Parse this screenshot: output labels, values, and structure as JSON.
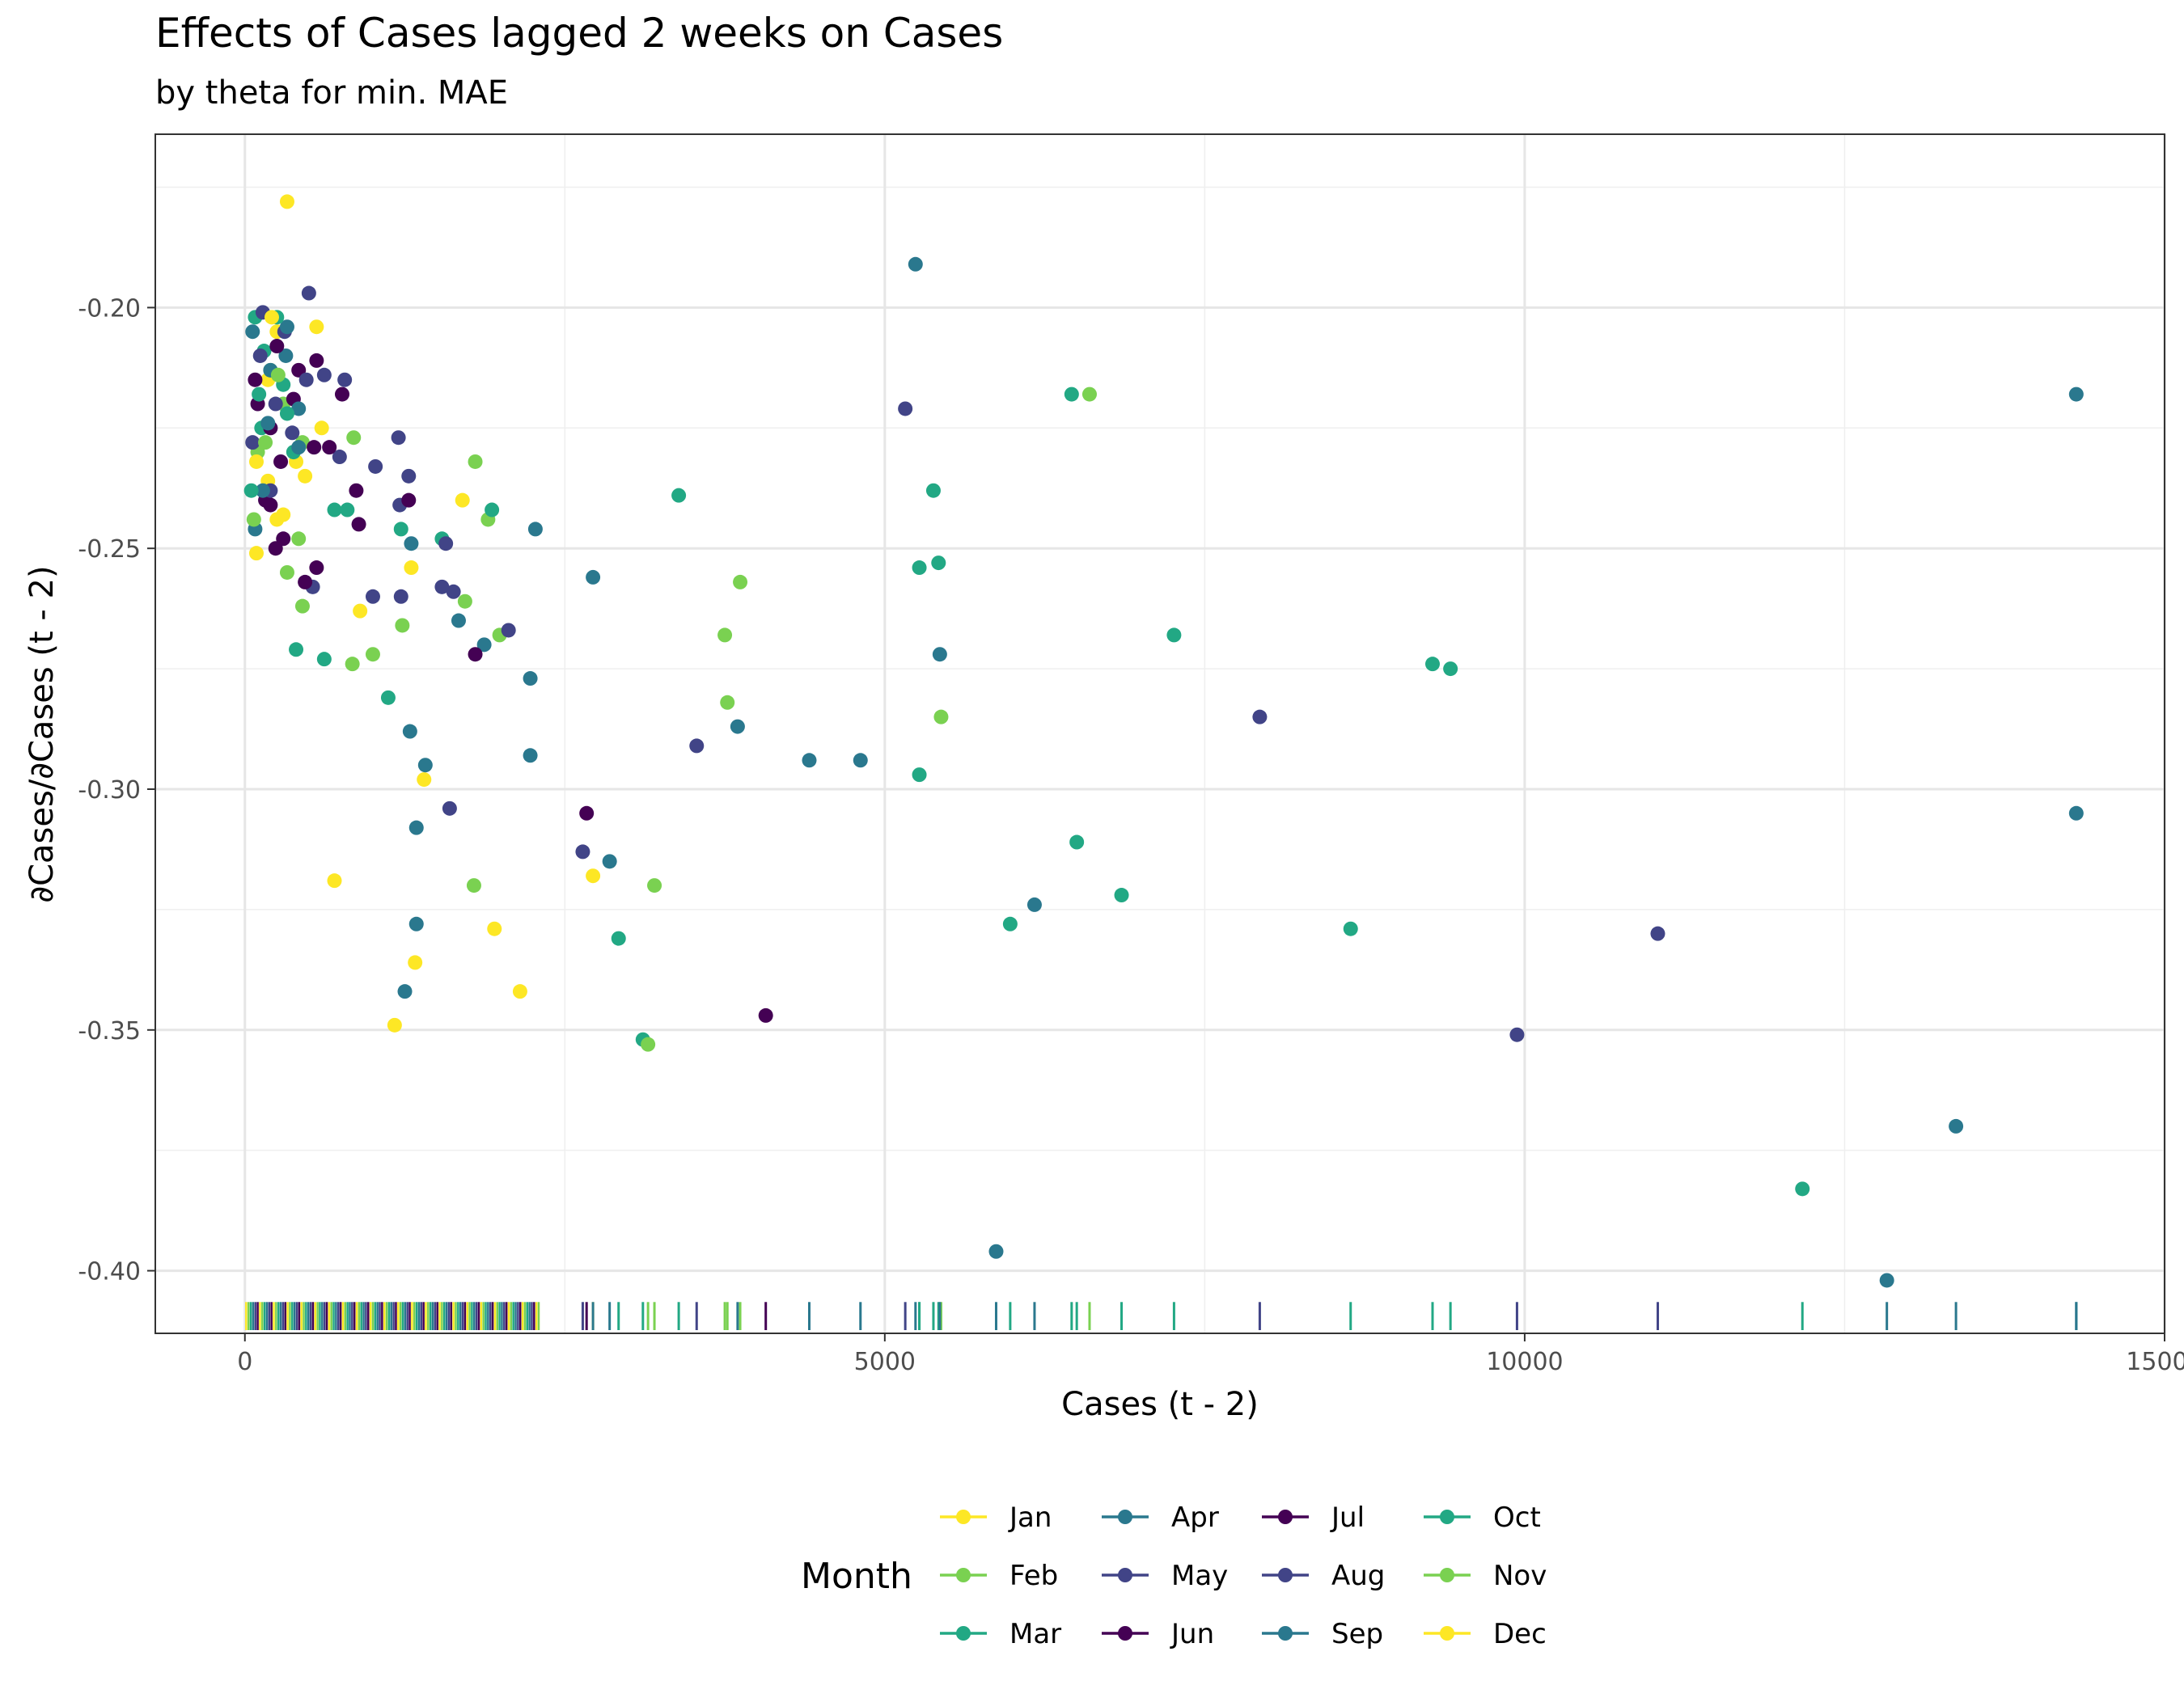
{
  "chart_data": {
    "type": "scatter",
    "title": "Effects of Cases lagged 2 weeks on Cases",
    "subtitle": "by theta for min. MAE",
    "xlabel": "Cases (t - 2)",
    "ylabel": "∂Cases/∂Cases (t - 2)",
    "xlim": [
      -700,
      15000
    ],
    "ylim": [
      -0.413,
      -0.164
    ],
    "x_ticks": [
      {
        "value": 0,
        "label": "0"
      },
      {
        "value": 5000,
        "label": "5000"
      },
      {
        "value": 10000,
        "label": "10000"
      },
      {
        "value": 15000,
        "label": "15000"
      }
    ],
    "y_ticks": [
      {
        "value": -0.2,
        "label": "-0.20"
      },
      {
        "value": -0.25,
        "label": "-0.25"
      },
      {
        "value": -0.3,
        "label": "-0.30"
      },
      {
        "value": -0.35,
        "label": "-0.35"
      },
      {
        "value": -0.4,
        "label": "-0.40"
      }
    ],
    "grid": true,
    "rug": "bottom",
    "legend": {
      "title": "Month",
      "position": "bottom",
      "entries": [
        "Jan",
        "Feb",
        "Mar",
        "Apr",
        "May",
        "Jun",
        "Jul",
        "Aug",
        "Sep",
        "Oct",
        "Nov",
        "Dec"
      ],
      "colors": [
        "#fde725",
        "#7ad151",
        "#22a884",
        "#2a788e",
        "#414487",
        "#440154",
        "#440154",
        "#414487",
        "#2a788e",
        "#22a884",
        "#7ad151",
        "#fde725"
      ]
    },
    "series": [
      {
        "name": "Jan",
        "points": [
          [
            330,
            -0.178
          ],
          [
            250,
            -0.205
          ],
          [
            180,
            -0.215
          ],
          [
            400,
            -0.232
          ],
          [
            600,
            -0.225
          ],
          [
            900,
            -0.263
          ],
          [
            1300,
            -0.254
          ],
          [
            1400,
            -0.298
          ],
          [
            700,
            -0.319
          ],
          [
            1950,
            -0.329
          ],
          [
            1330,
            -0.336
          ],
          [
            2150,
            -0.342
          ],
          [
            1170,
            -0.349
          ],
          [
            2720,
            -0.318
          ],
          [
            1700,
            -0.24
          ],
          [
            90,
            -0.251
          ],
          [
            180,
            -0.236
          ],
          [
            250,
            -0.244
          ]
        ]
      },
      {
        "name": "Feb",
        "points": [
          [
            200,
            -0.213
          ],
          [
            300,
            -0.22
          ],
          [
            450,
            -0.228
          ],
          [
            850,
            -0.227
          ],
          [
            1800,
            -0.232
          ],
          [
            1900,
            -0.244
          ],
          [
            1230,
            -0.266
          ],
          [
            1000,
            -0.272
          ],
          [
            1720,
            -0.261
          ],
          [
            1990,
            -0.268
          ],
          [
            840,
            -0.274
          ],
          [
            3870,
            -0.257
          ],
          [
            3750,
            -0.268
          ],
          [
            3770,
            -0.282
          ],
          [
            5440,
            -0.285
          ],
          [
            3200,
            -0.32
          ],
          [
            1790,
            -0.32
          ],
          [
            6600,
            -0.218
          ],
          [
            450,
            -0.262
          ],
          [
            330,
            -0.255
          ],
          [
            100,
            -0.23
          ]
        ]
      },
      {
        "name": "Mar",
        "points": [
          [
            80,
            -0.202
          ],
          [
            150,
            -0.209
          ],
          [
            300,
            -0.216
          ],
          [
            380,
            -0.23
          ],
          [
            700,
            -0.242
          ],
          [
            800,
            -0.242
          ],
          [
            1220,
            -0.246
          ],
          [
            1540,
            -0.248
          ],
          [
            1930,
            -0.242
          ],
          [
            400,
            -0.271
          ],
          [
            620,
            -0.273
          ],
          [
            1120,
            -0.281
          ],
          [
            3390,
            -0.239
          ],
          [
            5380,
            -0.238
          ],
          [
            5270,
            -0.254
          ],
          [
            5420,
            -0.253
          ],
          [
            7260,
            -0.268
          ],
          [
            5270,
            -0.297
          ],
          [
            6500,
            -0.311
          ],
          [
            6850,
            -0.322
          ],
          [
            5980,
            -0.328
          ],
          [
            2920,
            -0.331
          ],
          [
            3110,
            -0.352
          ],
          [
            6460,
            -0.218
          ],
          [
            130,
            -0.225
          ]
        ]
      },
      {
        "name": "Apr",
        "points": [
          [
            60,
            -0.205
          ],
          [
            200,
            -0.213
          ],
          [
            320,
            -0.21
          ],
          [
            420,
            -0.229
          ],
          [
            1300,
            -0.249
          ],
          [
            1670,
            -0.265
          ],
          [
            1870,
            -0.27
          ],
          [
            2230,
            -0.277
          ],
          [
            2270,
            -0.246
          ],
          [
            2720,
            -0.256
          ],
          [
            1290,
            -0.288
          ],
          [
            1410,
            -0.295
          ],
          [
            1340,
            -0.308
          ],
          [
            2850,
            -0.315
          ],
          [
            2230,
            -0.293
          ],
          [
            3850,
            -0.287
          ],
          [
            4410,
            -0.294
          ],
          [
            4810,
            -0.294
          ],
          [
            5240,
            -0.191
          ],
          [
            5430,
            -0.272
          ],
          [
            6170,
            -0.324
          ],
          [
            1340,
            -0.328
          ],
          [
            1250,
            -0.342
          ],
          [
            5870,
            -0.396
          ],
          [
            12830,
            -0.402
          ],
          [
            13370,
            -0.37
          ],
          [
            14310,
            -0.218
          ],
          [
            14310,
            -0.305
          ]
        ]
      },
      {
        "name": "May",
        "points": [
          [
            120,
            -0.21
          ],
          [
            240,
            -0.22
          ],
          [
            370,
            -0.226
          ],
          [
            500,
            -0.197
          ],
          [
            620,
            -0.214
          ],
          [
            780,
            -0.215
          ],
          [
            740,
            -0.231
          ],
          [
            1020,
            -0.233
          ],
          [
            1200,
            -0.227
          ],
          [
            1280,
            -0.235
          ],
          [
            1210,
            -0.241
          ],
          [
            1570,
            -0.249
          ],
          [
            1000,
            -0.26
          ],
          [
            1220,
            -0.26
          ],
          [
            1540,
            -0.258
          ],
          [
            1630,
            -0.259
          ],
          [
            2060,
            -0.267
          ],
          [
            1600,
            -0.304
          ],
          [
            530,
            -0.258
          ],
          [
            3530,
            -0.291
          ],
          [
            2640,
            -0.313
          ],
          [
            5160,
            -0.221
          ],
          [
            7930,
            -0.285
          ],
          [
            11040,
            -0.33
          ],
          [
            9940,
            -0.351
          ]
        ]
      },
      {
        "name": "Jun",
        "points": [
          [
            80,
            -0.215
          ],
          [
            200,
            -0.225
          ],
          [
            280,
            -0.232
          ],
          [
            380,
            -0.219
          ],
          [
            560,
            -0.211
          ],
          [
            760,
            -0.218
          ],
          [
            870,
            -0.238
          ],
          [
            890,
            -0.245
          ],
          [
            1280,
            -0.24
          ],
          [
            560,
            -0.254
          ],
          [
            470,
            -0.257
          ],
          [
            1800,
            -0.272
          ],
          [
            2670,
            -0.305
          ],
          [
            4070,
            -0.347
          ],
          [
            240,
            -0.25
          ],
          [
            160,
            -0.24
          ]
        ]
      },
      {
        "name": "Jul",
        "points": [
          [
            100,
            -0.22
          ],
          [
            250,
            -0.208
          ],
          [
            420,
            -0.213
          ],
          [
            540,
            -0.229
          ],
          [
            660,
            -0.229
          ],
          [
            200,
            -0.241
          ],
          [
            300,
            -0.248
          ]
        ]
      },
      {
        "name": "Aug",
        "points": [
          [
            60,
            -0.228
          ],
          [
            140,
            -0.201
          ],
          [
            310,
            -0.205
          ],
          [
            480,
            -0.215
          ],
          [
            200,
            -0.238
          ]
        ]
      },
      {
        "name": "Sep",
        "points": [
          [
            80,
            -0.246
          ],
          [
            180,
            -0.224
          ],
          [
            330,
            -0.204
          ],
          [
            420,
            -0.221
          ],
          [
            140,
            -0.238
          ]
        ]
      },
      {
        "name": "Oct",
        "points": [
          [
            50,
            -0.238
          ],
          [
            110,
            -0.218
          ],
          [
            250,
            -0.202
          ],
          [
            330,
            -0.222
          ],
          [
            9280,
            -0.274
          ],
          [
            9420,
            -0.275
          ],
          [
            8640,
            -0.329
          ],
          [
            12170,
            -0.383
          ]
        ]
      },
      {
        "name": "Nov",
        "points": [
          [
            70,
            -0.244
          ],
          [
            160,
            -0.228
          ],
          [
            260,
            -0.214
          ],
          [
            420,
            -0.248
          ],
          [
            3150,
            -0.353
          ]
        ]
      },
      {
        "name": "Dec",
        "points": [
          [
            90,
            -0.232
          ],
          [
            210,
            -0.202
          ],
          [
            300,
            -0.243
          ],
          [
            470,
            -0.235
          ],
          [
            560,
            -0.204
          ]
        ]
      }
    ],
    "rug_colors_in_dense_region": [
      "#fde725",
      "#7ad151",
      "#22a884",
      "#2a788e",
      "#414487",
      "#440154"
    ]
  }
}
